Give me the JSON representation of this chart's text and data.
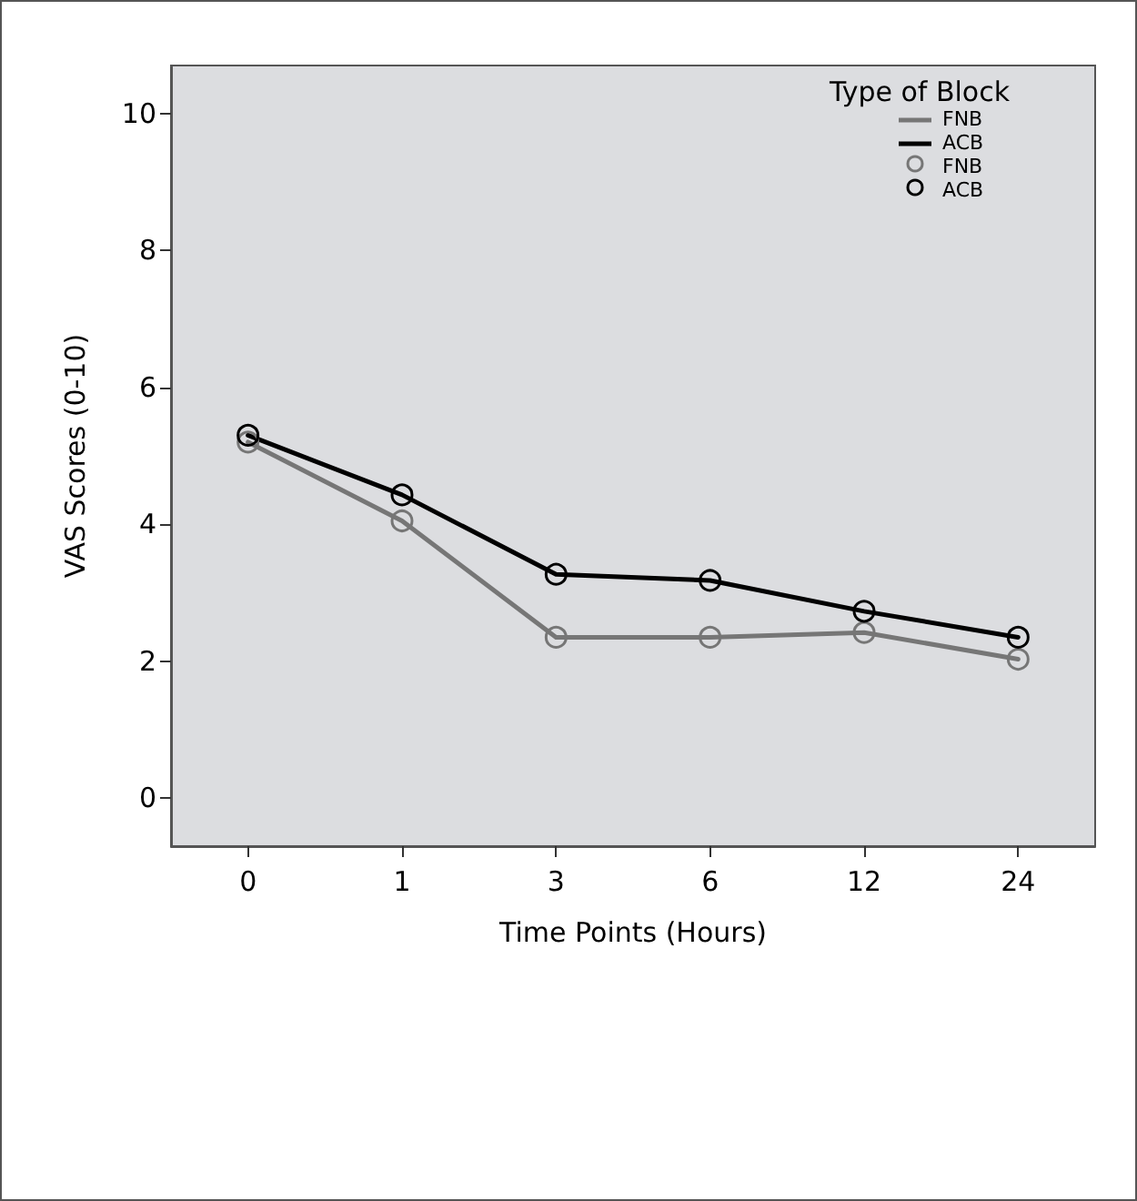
{
  "chart_data": {
    "type": "line",
    "xlabel": "Time Points (Hours)",
    "ylabel": "VAS Scores (0-10)",
    "legend_title": "Type of Block",
    "categories": [
      "0",
      "1",
      "3",
      "6",
      "12",
      "24"
    ],
    "series": [
      {
        "name": "FNB",
        "color": "#767676",
        "values": [
          5.2,
          4.05,
          2.35,
          2.35,
          2.42,
          2.03
        ]
      },
      {
        "name": "ACB",
        "color": "#000000",
        "values": [
          5.3,
          4.43,
          3.27,
          3.18,
          2.73,
          2.35
        ]
      }
    ],
    "ylim": [
      -0.7,
      10.7
    ],
    "yticks": [
      0,
      2,
      4,
      6,
      8,
      10
    ],
    "grid": false,
    "legend": "top right",
    "marker": "circle",
    "line_style": "solid"
  }
}
